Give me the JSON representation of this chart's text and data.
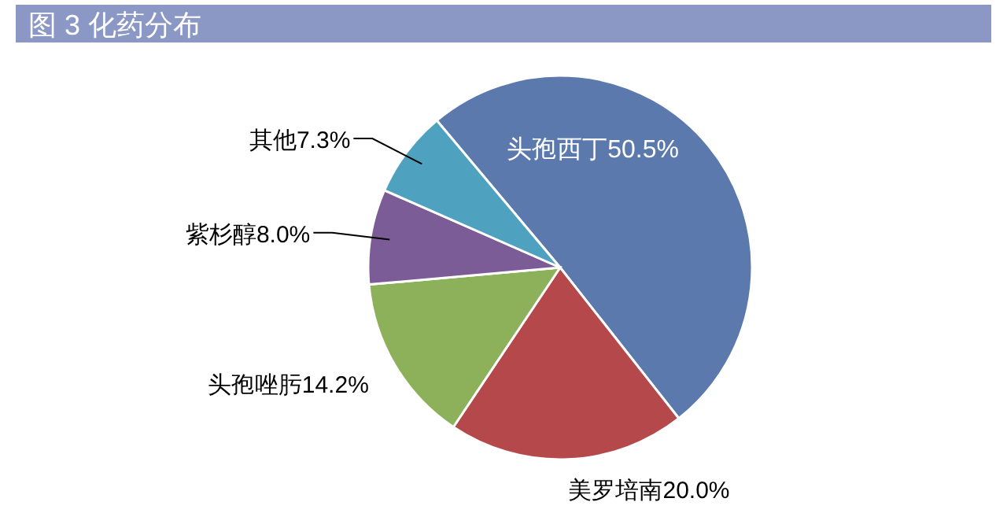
{
  "chart_data": {
    "type": "pie",
    "title": "图 3 化药分布",
    "categories": [
      "头孢西丁",
      "美罗培南",
      "头孢唑肟",
      "紫杉醇",
      "其他"
    ],
    "values": [
      50.5,
      20.0,
      14.2,
      8.0,
      7.3
    ],
    "colors": [
      "#5b79ad",
      "#b5484a",
      "#8cb15a",
      "#7b5c96",
      "#4ea2bf"
    ],
    "value_labels": [
      "50.5%",
      "20.0%",
      "14.2%",
      "8.0%",
      "7.3%"
    ]
  }
}
